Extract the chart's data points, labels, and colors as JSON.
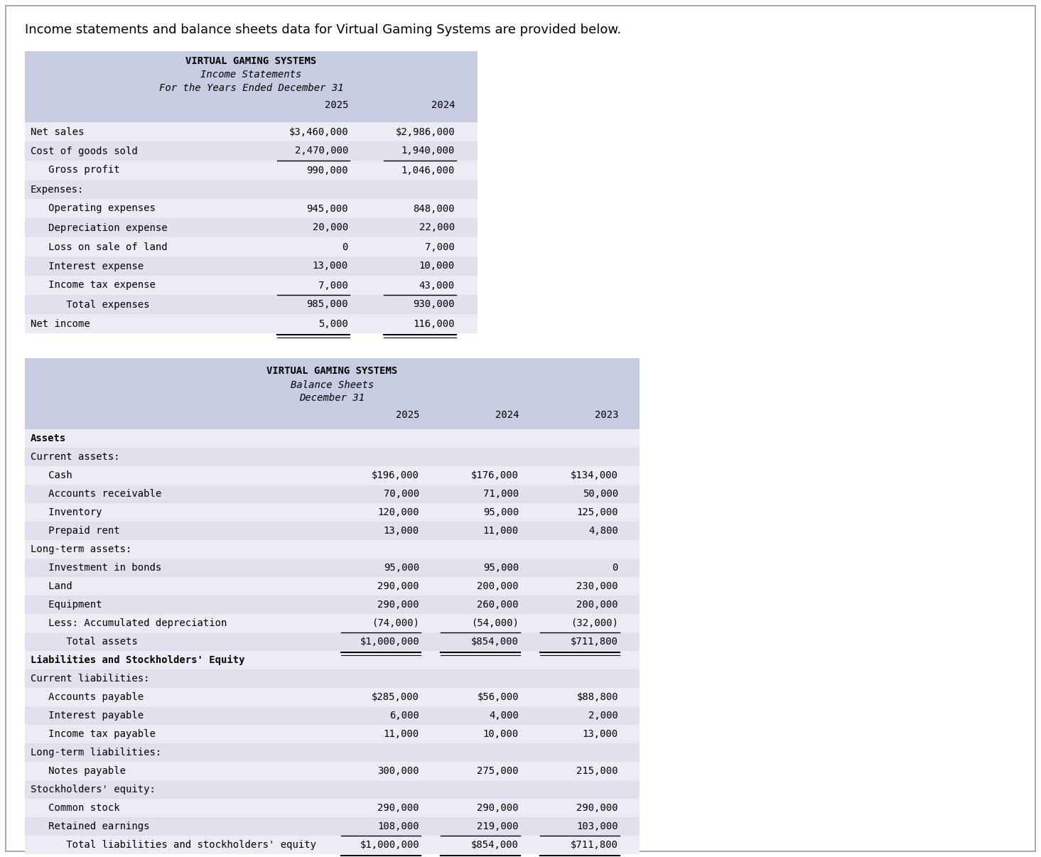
{
  "page_title": "Income statements and balance sheets data for Virtual Gaming Systems are provided below.",
  "table_header_color": "#c8cce0",
  "row_light": "#ecedf4",
  "row_dark": "#e0e1ec",
  "income_statement": {
    "title1": "VIRTUAL GAMING SYSTEMS",
    "title2": "Income Statements",
    "title3": "For the Years Ended December 31",
    "rows": [
      {
        "label": "Net sales",
        "val2025": "$3,460,000",
        "val2024": "$2,986,000",
        "bold": false,
        "line_below": false,
        "shaded": false,
        "double_below": false
      },
      {
        "label": "Cost of goods sold",
        "val2025": "2,470,000",
        "val2024": "1,940,000",
        "bold": false,
        "line_below": true,
        "shaded": true,
        "double_below": false
      },
      {
        "label": "   Gross profit",
        "val2025": "990,000",
        "val2024": "1,046,000",
        "bold": false,
        "line_below": false,
        "shaded": false,
        "double_below": false
      },
      {
        "label": "Expenses:",
        "val2025": "",
        "val2024": "",
        "bold": false,
        "line_below": false,
        "shaded": true,
        "double_below": false
      },
      {
        "label": "   Operating expenses",
        "val2025": "945,000",
        "val2024": "848,000",
        "bold": false,
        "line_below": false,
        "shaded": false,
        "double_below": false
      },
      {
        "label": "   Depreciation expense",
        "val2025": "20,000",
        "val2024": "22,000",
        "bold": false,
        "line_below": false,
        "shaded": true,
        "double_below": false
      },
      {
        "label": "   Loss on sale of land",
        "val2025": "0",
        "val2024": "7,000",
        "bold": false,
        "line_below": false,
        "shaded": false,
        "double_below": false
      },
      {
        "label": "   Interest expense",
        "val2025": "13,000",
        "val2024": "10,000",
        "bold": false,
        "line_below": false,
        "shaded": true,
        "double_below": false
      },
      {
        "label": "   Income tax expense",
        "val2025": "7,000",
        "val2024": "43,000",
        "bold": false,
        "line_below": true,
        "shaded": false,
        "double_below": false
      },
      {
        "label": "      Total expenses",
        "val2025": "985,000",
        "val2024": "930,000",
        "bold": false,
        "line_below": false,
        "shaded": true,
        "double_below": false
      },
      {
        "label": "Net income",
        "val2025": "5,000",
        "val2024": "116,000",
        "bold": false,
        "line_below": false,
        "shaded": false,
        "double_below": true
      }
    ]
  },
  "balance_sheet": {
    "title1": "VIRTUAL GAMING SYSTEMS",
    "title2": "Balance Sheets",
    "title3": "December 31",
    "rows": [
      {
        "label": "Assets",
        "val2025": "",
        "val2024": "",
        "val2023": "",
        "bold": true,
        "line_below": false,
        "shaded": false,
        "double_below": false
      },
      {
        "label": "Current assets:",
        "val2025": "",
        "val2024": "",
        "val2023": "",
        "bold": false,
        "line_below": false,
        "shaded": true,
        "double_below": false
      },
      {
        "label": "   Cash",
        "val2025": "$196,000",
        "val2024": "$176,000",
        "val2023": "$134,000",
        "bold": false,
        "line_below": false,
        "shaded": false,
        "double_below": false
      },
      {
        "label": "   Accounts receivable",
        "val2025": "70,000",
        "val2024": "71,000",
        "val2023": "50,000",
        "bold": false,
        "line_below": false,
        "shaded": true,
        "double_below": false
      },
      {
        "label": "   Inventory",
        "val2025": "120,000",
        "val2024": "95,000",
        "val2023": "125,000",
        "bold": false,
        "line_below": false,
        "shaded": false,
        "double_below": false
      },
      {
        "label": "   Prepaid rent",
        "val2025": "13,000",
        "val2024": "11,000",
        "val2023": "4,800",
        "bold": false,
        "line_below": false,
        "shaded": true,
        "double_below": false
      },
      {
        "label": "Long-term assets:",
        "val2025": "",
        "val2024": "",
        "val2023": "",
        "bold": false,
        "line_below": false,
        "shaded": false,
        "double_below": false
      },
      {
        "label": "   Investment in bonds",
        "val2025": "95,000",
        "val2024": "95,000",
        "val2023": "0",
        "bold": false,
        "line_below": false,
        "shaded": true,
        "double_below": false
      },
      {
        "label": "   Land",
        "val2025": "290,000",
        "val2024": "200,000",
        "val2023": "230,000",
        "bold": false,
        "line_below": false,
        "shaded": false,
        "double_below": false
      },
      {
        "label": "   Equipment",
        "val2025": "290,000",
        "val2024": "260,000",
        "val2023": "200,000",
        "bold": false,
        "line_below": false,
        "shaded": true,
        "double_below": false
      },
      {
        "label": "   Less: Accumulated depreciation",
        "val2025": "(74,000)",
        "val2024": "(54,000)",
        "val2023": "(32,000)",
        "bold": false,
        "line_below": true,
        "shaded": false,
        "double_below": false
      },
      {
        "label": "      Total assets",
        "val2025": "$1,000,000",
        "val2024": "$854,000",
        "val2023": "$711,800",
        "bold": false,
        "line_below": false,
        "shaded": true,
        "double_below": true
      },
      {
        "label": "Liabilities and Stockholders' Equity",
        "val2025": "",
        "val2024": "",
        "val2023": "",
        "bold": true,
        "line_below": false,
        "shaded": false,
        "double_below": false
      },
      {
        "label": "Current liabilities:",
        "val2025": "",
        "val2024": "",
        "val2023": "",
        "bold": false,
        "line_below": false,
        "shaded": true,
        "double_below": false
      },
      {
        "label": "   Accounts payable",
        "val2025": "$285,000",
        "val2024": "$56,000",
        "val2023": "$88,800",
        "bold": false,
        "line_below": false,
        "shaded": false,
        "double_below": false
      },
      {
        "label": "   Interest payable",
        "val2025": "6,000",
        "val2024": "4,000",
        "val2023": "2,000",
        "bold": false,
        "line_below": false,
        "shaded": true,
        "double_below": false
      },
      {
        "label": "   Income tax payable",
        "val2025": "11,000",
        "val2024": "10,000",
        "val2023": "13,000",
        "bold": false,
        "line_below": false,
        "shaded": false,
        "double_below": false
      },
      {
        "label": "Long-term liabilities:",
        "val2025": "",
        "val2024": "",
        "val2023": "",
        "bold": false,
        "line_below": false,
        "shaded": true,
        "double_below": false
      },
      {
        "label": "   Notes payable",
        "val2025": "300,000",
        "val2024": "275,000",
        "val2023": "215,000",
        "bold": false,
        "line_below": false,
        "shaded": false,
        "double_below": false
      },
      {
        "label": "Stockholders' equity:",
        "val2025": "",
        "val2024": "",
        "val2023": "",
        "bold": false,
        "line_below": false,
        "shaded": true,
        "double_below": false
      },
      {
        "label": "   Common stock",
        "val2025": "290,000",
        "val2024": "290,000",
        "val2023": "290,000",
        "bold": false,
        "line_below": false,
        "shaded": false,
        "double_below": false
      },
      {
        "label": "   Retained earnings",
        "val2025": "108,000",
        "val2024": "219,000",
        "val2023": "103,000",
        "bold": false,
        "line_below": true,
        "shaded": true,
        "double_below": false
      },
      {
        "label": "      Total liabilities and stockholders' equity",
        "val2025": "$1,000,000",
        "val2024": "$854,000",
        "val2023": "$711,800",
        "bold": false,
        "line_below": false,
        "shaded": false,
        "double_below": true
      }
    ]
  }
}
